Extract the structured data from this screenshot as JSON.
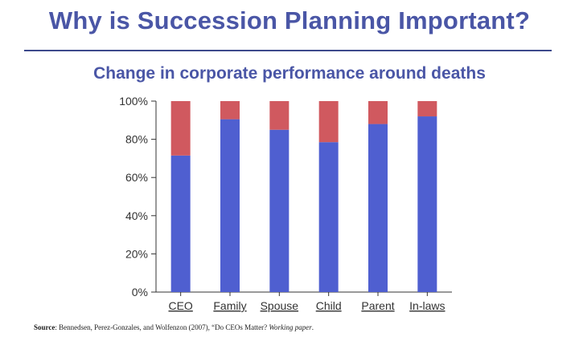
{
  "slide": {
    "title": "Why is Succession Planning Important?"
  },
  "source": {
    "label": "Source",
    "text": ": Bennedsen, Perez-Gonzales, and Wolfenzon (2007), “Do CEOs Matter? ",
    "italic": "Working paper",
    "end": "."
  },
  "colors": {
    "title": "#4a56a6",
    "blue_bar": "#4f5fd0",
    "red_bar": "#d0595f",
    "axis": "#333333"
  },
  "chart_data": {
    "type": "bar",
    "stacked": true,
    "title": "Change in corporate performance around deaths",
    "categories": [
      "CEO",
      "Family",
      "Spouse",
      "Child",
      "Parent",
      "In-laws"
    ],
    "series": [
      {
        "color": "#4f5fd0",
        "values": [
          71.5,
          90.5,
          85,
          78.5,
          88,
          92
        ]
      },
      {
        "color": "#d0595f",
        "values": [
          28.5,
          9.5,
          15,
          21.5,
          12,
          8
        ]
      }
    ],
    "yticks": [
      "0%",
      "20%",
      "40%",
      "60%",
      "80%",
      "100%"
    ],
    "ylim": [
      0,
      100
    ],
    "grid": false,
    "legend": "none",
    "category_labels_underlined": true
  }
}
